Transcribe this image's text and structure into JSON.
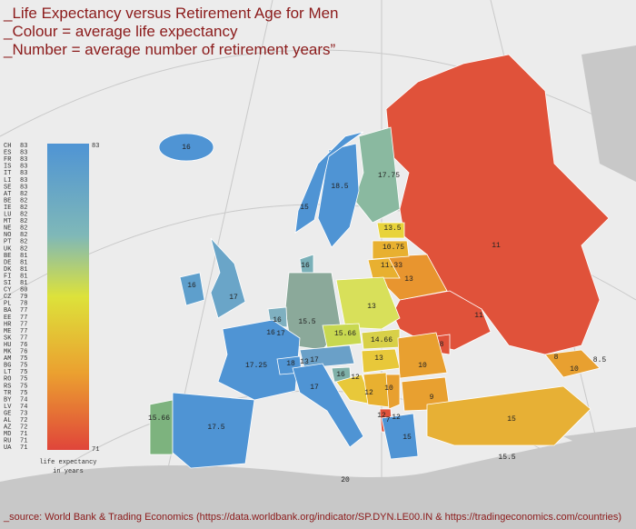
{
  "header": {
    "lines": [
      "_Life Expectancy versus Retirement Age for Men",
      "_Colour = average life expectancy",
      "_Number = average number of retirement years”"
    ]
  },
  "legend": {
    "entries": [
      {
        "code": "CH",
        "value": 83
      },
      {
        "code": "ES",
        "value": 83
      },
      {
        "code": "FR",
        "value": 83
      },
      {
        "code": "IS",
        "value": 83
      },
      {
        "code": "IT",
        "value": 83
      },
      {
        "code": "LI",
        "value": 83
      },
      {
        "code": "SE",
        "value": 83
      },
      {
        "code": "AT",
        "value": 82
      },
      {
        "code": "BE",
        "value": 82
      },
      {
        "code": "IE",
        "value": 82
      },
      {
        "code": "LU",
        "value": 82
      },
      {
        "code": "MT",
        "value": 82
      },
      {
        "code": "NE",
        "value": 82
      },
      {
        "code": "NO",
        "value": 82
      },
      {
        "code": "PT",
        "value": 82
      },
      {
        "code": "UK",
        "value": 82
      },
      {
        "code": "BE",
        "value": 81
      },
      {
        "code": "DE",
        "value": 81
      },
      {
        "code": "DK",
        "value": 81
      },
      {
        "code": "FI",
        "value": 81
      },
      {
        "code": "SI",
        "value": 81
      },
      {
        "code": "CY",
        "value": 80
      },
      {
        "code": "CZ",
        "value": 79
      },
      {
        "code": "PL",
        "value": 78
      },
      {
        "code": "BA",
        "value": 77
      },
      {
        "code": "EE",
        "value": 77
      },
      {
        "code": "HR",
        "value": 77
      },
      {
        "code": "ME",
        "value": 77
      },
      {
        "code": "SK",
        "value": 77
      },
      {
        "code": "HU",
        "value": 76
      },
      {
        "code": "MK",
        "value": 76
      },
      {
        "code": "AM",
        "value": 75
      },
      {
        "code": "BG",
        "value": 75
      },
      {
        "code": "LT",
        "value": 75
      },
      {
        "code": "RO",
        "value": 75
      },
      {
        "code": "RS",
        "value": 75
      },
      {
        "code": "TR",
        "value": 75
      },
      {
        "code": "BY",
        "value": 74
      },
      {
        "code": "LV",
        "value": 74
      },
      {
        "code": "GE",
        "value": 73
      },
      {
        "code": "AL",
        "value": 72
      },
      {
        "code": "AZ",
        "value": 72
      },
      {
        "code": "MD",
        "value": 71
      },
      {
        "code": "RU",
        "value": 71
      },
      {
        "code": "UA",
        "value": 71
      }
    ],
    "scale_max": 83,
    "scale_min": 71,
    "caption": [
      "life expectancy",
      "in years"
    ]
  },
  "map_labels": [
    16,
    18.5,
    15,
    17.75,
    13.5,
    10.75,
    11.33,
    13,
    11,
    16,
    16,
    17,
    16,
    16,
    17,
    15.5,
    13,
    15.66,
    14.66,
    11,
    8,
    17.25,
    18,
    13,
    17,
    13,
    10,
    16,
    12,
    12,
    10,
    9,
    12,
    12,
    7,
    15,
    15,
    15.5,
    17,
    15.66,
    17.5,
    8,
    8.5,
    10,
    20
  ],
  "footer": "_source: World Bank & Trading Economics (https://data.worldbank.org/indicator/SP.DYN.LE00.IN & https://tradingeconomics.com/countries)"
}
